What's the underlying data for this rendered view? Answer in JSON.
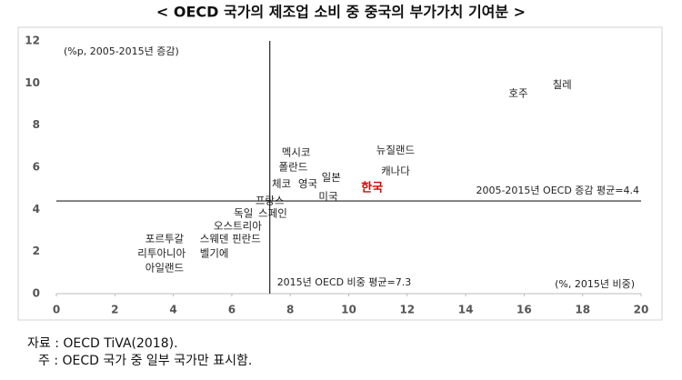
{
  "chart_data": {
    "type": "scatter",
    "title": "< OECD 국가의 제조업 소비 중 중국의 부가가치 기여분 >",
    "y_annotation": "(%p, 2005-2015년 증감)",
    "x_annotation": "(%, 2015년 비중)",
    "point_labels": [
      "칠레",
      "호주",
      "멕시코",
      "폴란드",
      "체코",
      "영국",
      "일본",
      "미국",
      "한국",
      "뉴질랜드",
      "캐나다",
      "프랑스",
      "독일",
      "스페인",
      "오스트리아",
      "핀란드",
      "포르투갈",
      "스웨덴",
      "리투아니아",
      "벨기에",
      "아일랜드"
    ],
    "x": [
      17.3,
      15.8,
      8.2,
      8.1,
      7.7,
      8.6,
      9.4,
      9.3,
      10.8,
      11.6,
      11.6,
      7.3,
      6.4,
      7.4,
      6.2,
      6.5,
      3.7,
      5.4,
      3.6,
      5.4,
      3.7
    ],
    "values": [
      9.9,
      9.5,
      6.7,
      6.0,
      5.2,
      5.2,
      5.5,
      4.6,
      5.0,
      6.8,
      5.8,
      4.4,
      3.8,
      3.8,
      3.2,
      2.6,
      2.6,
      2.6,
      1.9,
      1.9,
      1.2
    ],
    "label_colors": [
      "#222",
      "#222",
      "#222",
      "#222",
      "#222",
      "#222",
      "#222",
      "#222",
      "#e00000",
      "#222",
      "#222",
      "#222",
      "#222",
      "#222",
      "#222",
      "#222",
      "#222",
      "#222",
      "#222",
      "#222",
      "#222"
    ],
    "xlim": [
      0,
      20
    ],
    "xticks": [
      0,
      2,
      4,
      6,
      8,
      10,
      12,
      14,
      16,
      18,
      20
    ],
    "ylim": [
      0,
      12
    ],
    "yticks": [
      0,
      2,
      4,
      6,
      8,
      10,
      12
    ],
    "reference_lines": [
      {
        "axis": "x",
        "value": 7.3,
        "label": "2015년 OECD 비중 평균=7.3"
      },
      {
        "axis": "y",
        "value": 4.4,
        "label": "2005-2015년 OECD 증감 평균=4.4"
      }
    ],
    "grid": false
  },
  "footnotes": [
    "자료 : OECD TiVA(2018).",
    "주 : OECD 국가 중 일부 국가만 표시함."
  ]
}
